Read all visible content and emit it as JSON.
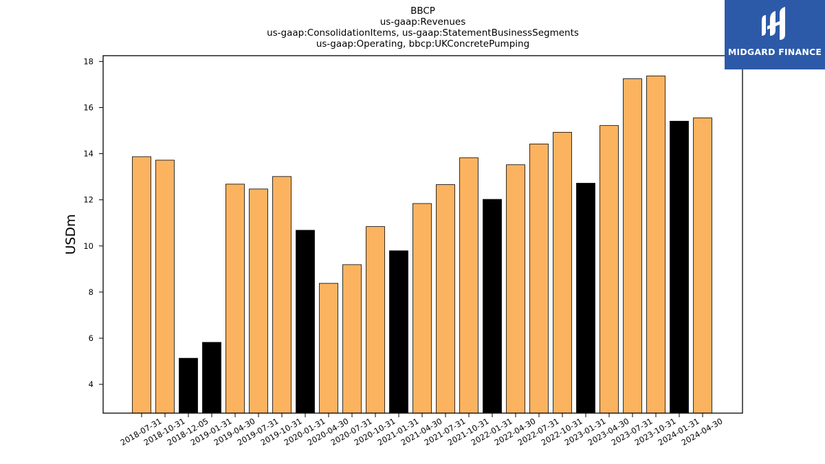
{
  "logo": {
    "text": "MIDGARD FINANCE"
  },
  "chart_data": {
    "type": "bar",
    "title_lines": [
      "BBCP",
      "us-gaap:Revenues",
      "us-gaap:ConsolidationItems, us-gaap:StatementBusinessSegments",
      "us-gaap:Operating, bbcp:UKConcretePumping"
    ],
    "ylabel": "USDm",
    "xlabel": "",
    "ylim": [
      2.75,
      18.25
    ],
    "yticks": [
      4,
      6,
      8,
      10,
      12,
      14,
      16,
      18
    ],
    "categories": [
      "2018-07-31",
      "2018-10-31",
      "2018-12-05",
      "2019-01-31",
      "2019-04-30",
      "2019-07-31",
      "2019-10-31",
      "2020-01-31",
      "2020-04-30",
      "2020-07-31",
      "2020-10-31",
      "2021-01-31",
      "2021-04-30",
      "2021-07-31",
      "2021-10-31",
      "2022-01-31",
      "2022-04-30",
      "2022-07-31",
      "2022-10-31",
      "2023-01-31",
      "2023-04-30",
      "2023-07-31",
      "2023-10-31",
      "2024-01-31",
      "2024-04-30"
    ],
    "values": [
      13.87,
      13.72,
      5.13,
      5.82,
      12.68,
      12.47,
      13.01,
      10.68,
      8.38,
      9.19,
      10.84,
      9.79,
      11.84,
      12.66,
      13.82,
      12.02,
      13.52,
      14.42,
      14.93,
      12.72,
      15.22,
      17.25,
      17.37,
      15.41,
      15.55
    ],
    "bar_colors": [
      "#fbb360",
      "#fbb360",
      "#000000",
      "#000000",
      "#fbb360",
      "#fbb360",
      "#fbb360",
      "#000000",
      "#fbb360",
      "#fbb360",
      "#fbb360",
      "#000000",
      "#fbb360",
      "#fbb360",
      "#fbb360",
      "#000000",
      "#fbb360",
      "#fbb360",
      "#fbb360",
      "#000000",
      "#fbb360",
      "#fbb360",
      "#fbb360",
      "#000000",
      "#fbb360"
    ],
    "grid": false,
    "legend": "none"
  }
}
